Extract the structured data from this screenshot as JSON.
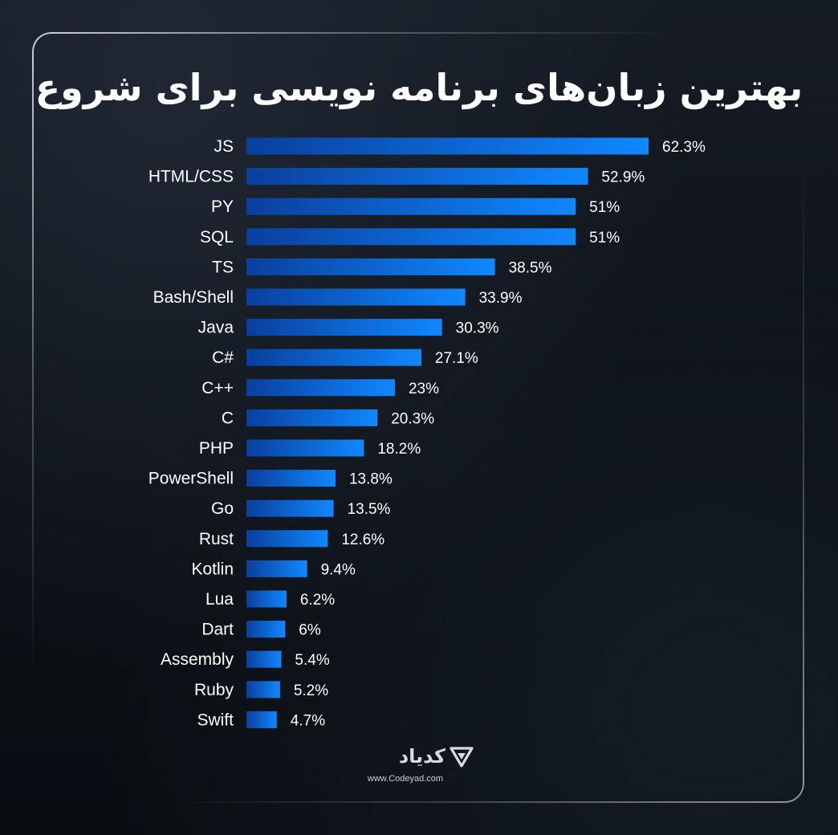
{
  "title": "بهترین زبان‌های برنامه نویسی برای شروع",
  "chart_data": {
    "type": "bar",
    "orientation": "horizontal",
    "title": "بهترین زبان‌های برنامه نویسی برای شروع",
    "xlabel": "",
    "ylabel": "",
    "xlim": [
      0,
      62.3
    ],
    "grid": false,
    "legend": "none",
    "categories": [
      "JS",
      "HTML/CSS",
      "PY",
      "SQL",
      "TS",
      "Bash/Shell",
      "Java",
      "C#",
      "C++",
      "C",
      "PHP",
      "PowerShell",
      "Go",
      "Rust",
      "Kotlin",
      "Lua",
      "Dart",
      "Assembly",
      "Ruby",
      "Swift"
    ],
    "values": [
      62.3,
      52.9,
      51,
      51,
      38.5,
      33.9,
      30.3,
      27.1,
      23,
      20.3,
      18.2,
      13.8,
      13.5,
      12.6,
      9.4,
      6.2,
      6,
      5.4,
      5.2,
      4.7
    ],
    "value_labels": [
      "62.3%",
      "52.9%",
      "51%",
      "51%",
      "38.5%",
      "33.9%",
      "30.3%",
      "27.1%",
      "23%",
      "20.3%",
      "18.2%",
      "13.8%",
      "13.5%",
      "12.6%",
      "9.4%",
      "6.2%",
      "6%",
      "5.4%",
      "5.2%",
      "4.7%"
    ],
    "colors": {
      "bar_start": "#0a3f9e",
      "bar_end": "#1088ff",
      "text": "#ffffff"
    }
  },
  "brand": {
    "name": "کدیاد",
    "url": "www.Codeyad.com",
    "icon": "codeyad-logo-icon"
  },
  "colors": {
    "background": "#0c1016",
    "frame": "#e6ebf2",
    "title": "#ffffff"
  }
}
